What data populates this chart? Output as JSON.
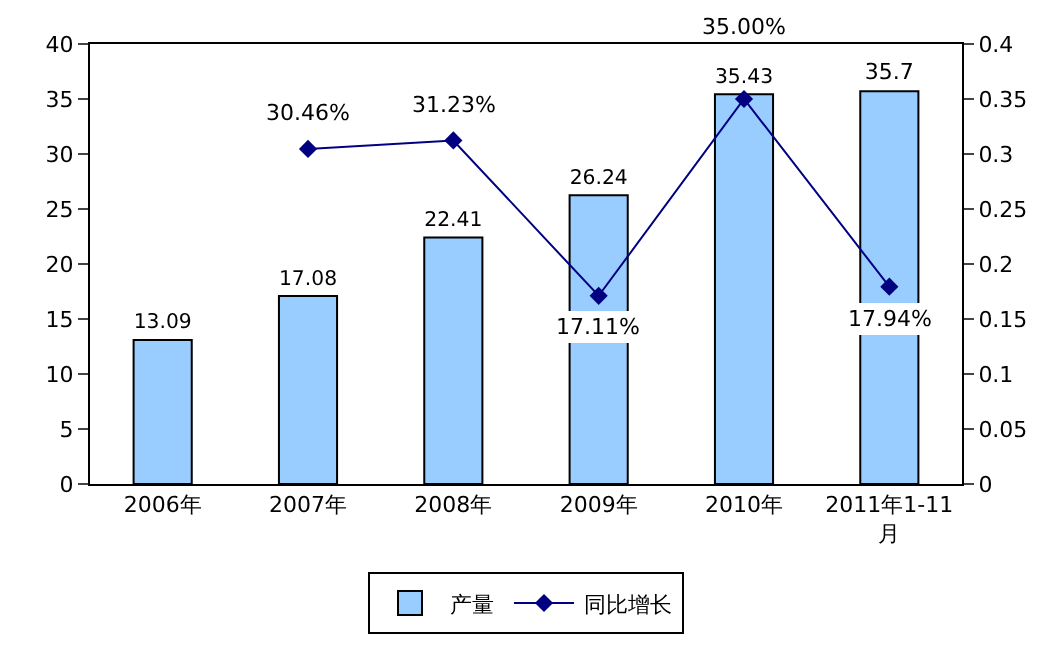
{
  "chart_data": {
    "type": "bar",
    "categories": [
      "2006年",
      "2007年",
      "2008年",
      "2009年",
      "2010年",
      "2011年1-11月"
    ],
    "series": [
      {
        "name": "产量",
        "color": "#99ccff",
        "values": [
          13.09,
          17.08,
          22.41,
          26.24,
          35.43,
          35.7
        ],
        "value_labels": [
          "13.09",
          "17.08",
          "22.41",
          "26.24",
          "35.43",
          "35.7"
        ]
      },
      {
        "name": "同比增长",
        "type": "line",
        "axis": "y2",
        "color": "#000080",
        "marker": "diamond",
        "values": [
          null,
          0.3046,
          0.3123,
          0.1711,
          0.35,
          0.1794
        ],
        "value_labels": [
          null,
          "30.46%",
          "31.23%",
          "17.11%",
          "35.00%",
          "17.94%"
        ]
      }
    ],
    "ylim": [
      0,
      40
    ],
    "yticks": [
      0,
      5,
      10,
      15,
      20,
      25,
      30,
      35,
      40
    ],
    "y2lim": [
      0,
      0.4
    ],
    "y2ticks": [
      0,
      0.05,
      0.1,
      0.15,
      0.2,
      0.25,
      0.3,
      0.35,
      0.4
    ],
    "grid": false,
    "legend": "bottom"
  }
}
